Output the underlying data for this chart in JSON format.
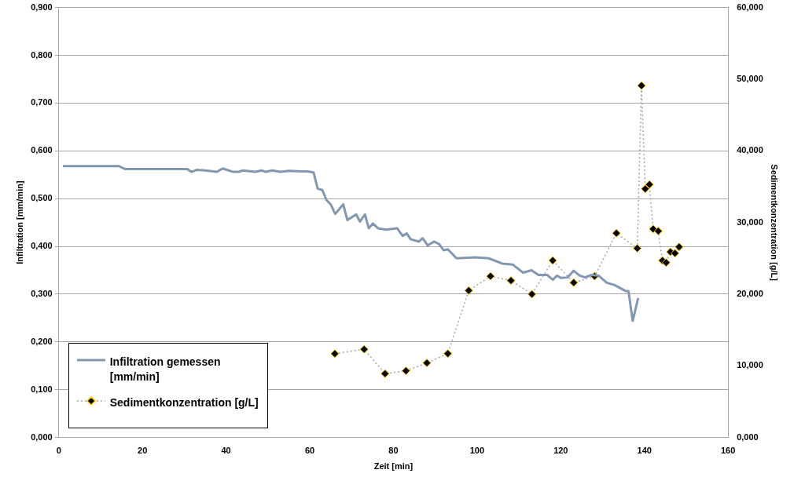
{
  "chart_data": {
    "type": "line",
    "xlabel": "Zeit [min]",
    "ylabel": "Infiltration [mm/min]",
    "y2label": "Sedimentkonzentration [g/L]",
    "xlim": [
      0,
      160
    ],
    "xticks": [
      0,
      20,
      40,
      60,
      80,
      100,
      120,
      140,
      160
    ],
    "ylim": [
      0,
      0.9
    ],
    "yticks": [
      {
        "value": 0,
        "label": "0,000"
      },
      {
        "value": 0.1,
        "label": "0,100"
      },
      {
        "value": 0.2,
        "label": "0,200"
      },
      {
        "value": 0.3,
        "label": "0,300"
      },
      {
        "value": 0.4,
        "label": "0,400"
      },
      {
        "value": 0.5,
        "label": "0,500"
      },
      {
        "value": 0.6,
        "label": "0,600"
      },
      {
        "value": 0.7,
        "label": "0,700"
      },
      {
        "value": 0.8,
        "label": "0,800"
      },
      {
        "value": 0.9,
        "label": "0,900"
      }
    ],
    "y2lim": [
      0,
      60
    ],
    "y2ticks": [
      {
        "value": 0,
        "label": "0,000"
      },
      {
        "value": 10,
        "label": "10,000"
      },
      {
        "value": 20,
        "label": "20,000"
      },
      {
        "value": 30,
        "label": "30,000"
      },
      {
        "value": 40,
        "label": "40,000"
      },
      {
        "value": 50,
        "label": "50,000"
      },
      {
        "value": 60,
        "label": "60,000"
      }
    ],
    "grid": "y",
    "legend": "bottom left",
    "series": [
      {
        "name": "Infiltration gemessen [mm/min]",
        "color": "#8497b0",
        "marker": "none",
        "line_style": "solid",
        "x": [
          1,
          14.4,
          15.8,
          30.7,
          31.7,
          33,
          35,
          37.8,
          39.2,
          41.7,
          43,
          44,
          47,
          48.5,
          49.5,
          51,
          53,
          55,
          58,
          59.5,
          60.9,
          61.9,
          63,
          64,
          65,
          66.1,
          68,
          69,
          71.1,
          72,
          73.2,
          74.1,
          75.1,
          76.3,
          78.2,
          80.9,
          82.2,
          83.2,
          84.1,
          86.1,
          87,
          88.2,
          89.7,
          90.9,
          92,
          93,
          95.1,
          99.5,
          102.8,
          106,
          108.5,
          111,
          113,
          114.7,
          116.8,
          118.1,
          119.1,
          120,
          121.6,
          123.1,
          124.5,
          125.8,
          127.2,
          129,
          131,
          132.9,
          135.4,
          136.2,
          137.2,
          138.5
        ],
        "values": [
          0.568,
          0.568,
          0.562,
          0.562,
          0.556,
          0.56,
          0.559,
          0.556,
          0.563,
          0.556,
          0.556,
          0.559,
          0.556,
          0.559,
          0.556,
          0.559,
          0.556,
          0.558,
          0.557,
          0.557,
          0.555,
          0.521,
          0.518,
          0.497,
          0.488,
          0.468,
          0.488,
          0.455,
          0.467,
          0.452,
          0.467,
          0.438,
          0.448,
          0.438,
          0.435,
          0.438,
          0.422,
          0.427,
          0.415,
          0.41,
          0.417,
          0.402,
          0.41,
          0.405,
          0.392,
          0.394,
          0.375,
          0.377,
          0.375,
          0.364,
          0.362,
          0.345,
          0.35,
          0.34,
          0.34,
          0.33,
          0.339,
          0.334,
          0.335,
          0.349,
          0.339,
          0.335,
          0.34,
          0.339,
          0.324,
          0.319,
          0.307,
          0.306,
          0.244,
          0.292
        ]
      },
      {
        "name": "Sedimentkonzentration [g/L]",
        "color": "#000000",
        "axis": "y2",
        "marker": "diamond",
        "line_style": "dotted",
        "x": [
          66,
          73,
          78,
          83,
          88,
          93,
          98,
          103.2,
          108.1,
          113.1,
          118.1,
          123.1,
          128.1,
          133.3,
          138.3,
          139.3,
          140.2,
          141.2,
          142.1,
          143.3,
          144.3,
          145.2,
          146.2,
          147.3,
          148.3
        ],
        "values": [
          11.7,
          12.3,
          8.9,
          9.3,
          10.4,
          11.7,
          20.5,
          22.5,
          21.9,
          20,
          24.7,
          21.6,
          22.5,
          28.5,
          26.4,
          49.1,
          34.7,
          35.3,
          29.1,
          28.8,
          24.7,
          24.4,
          25.9,
          25.7,
          26.6
        ]
      }
    ]
  }
}
